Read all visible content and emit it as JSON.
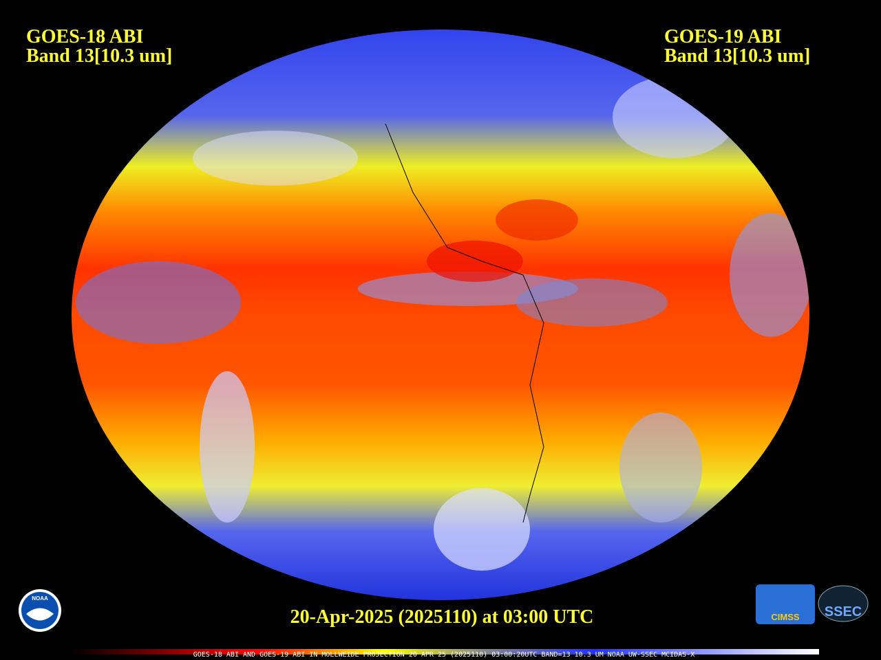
{
  "header": {
    "left": {
      "title": "GOES-18 ABI",
      "band": "Band 13[10.3 um]"
    },
    "right": {
      "title": "GOES-19 ABI",
      "band": "Band 13[10.3 um]"
    }
  },
  "timestamp": "20-Apr-2025 (2025110) at 03:00 UTC",
  "logos": {
    "noaa": "NOAA",
    "cimss": "CIMSS",
    "ssec": "SSEC"
  },
  "footer": "GOES-18 ABI AND GOES-19 ABI IN MOLLWEIDE PROJECTION 20 APR 25 (2025110) 03:00:20UTC BAND=13 10.3 UM NOAA UW-SSEC MCIDAS-X"
}
